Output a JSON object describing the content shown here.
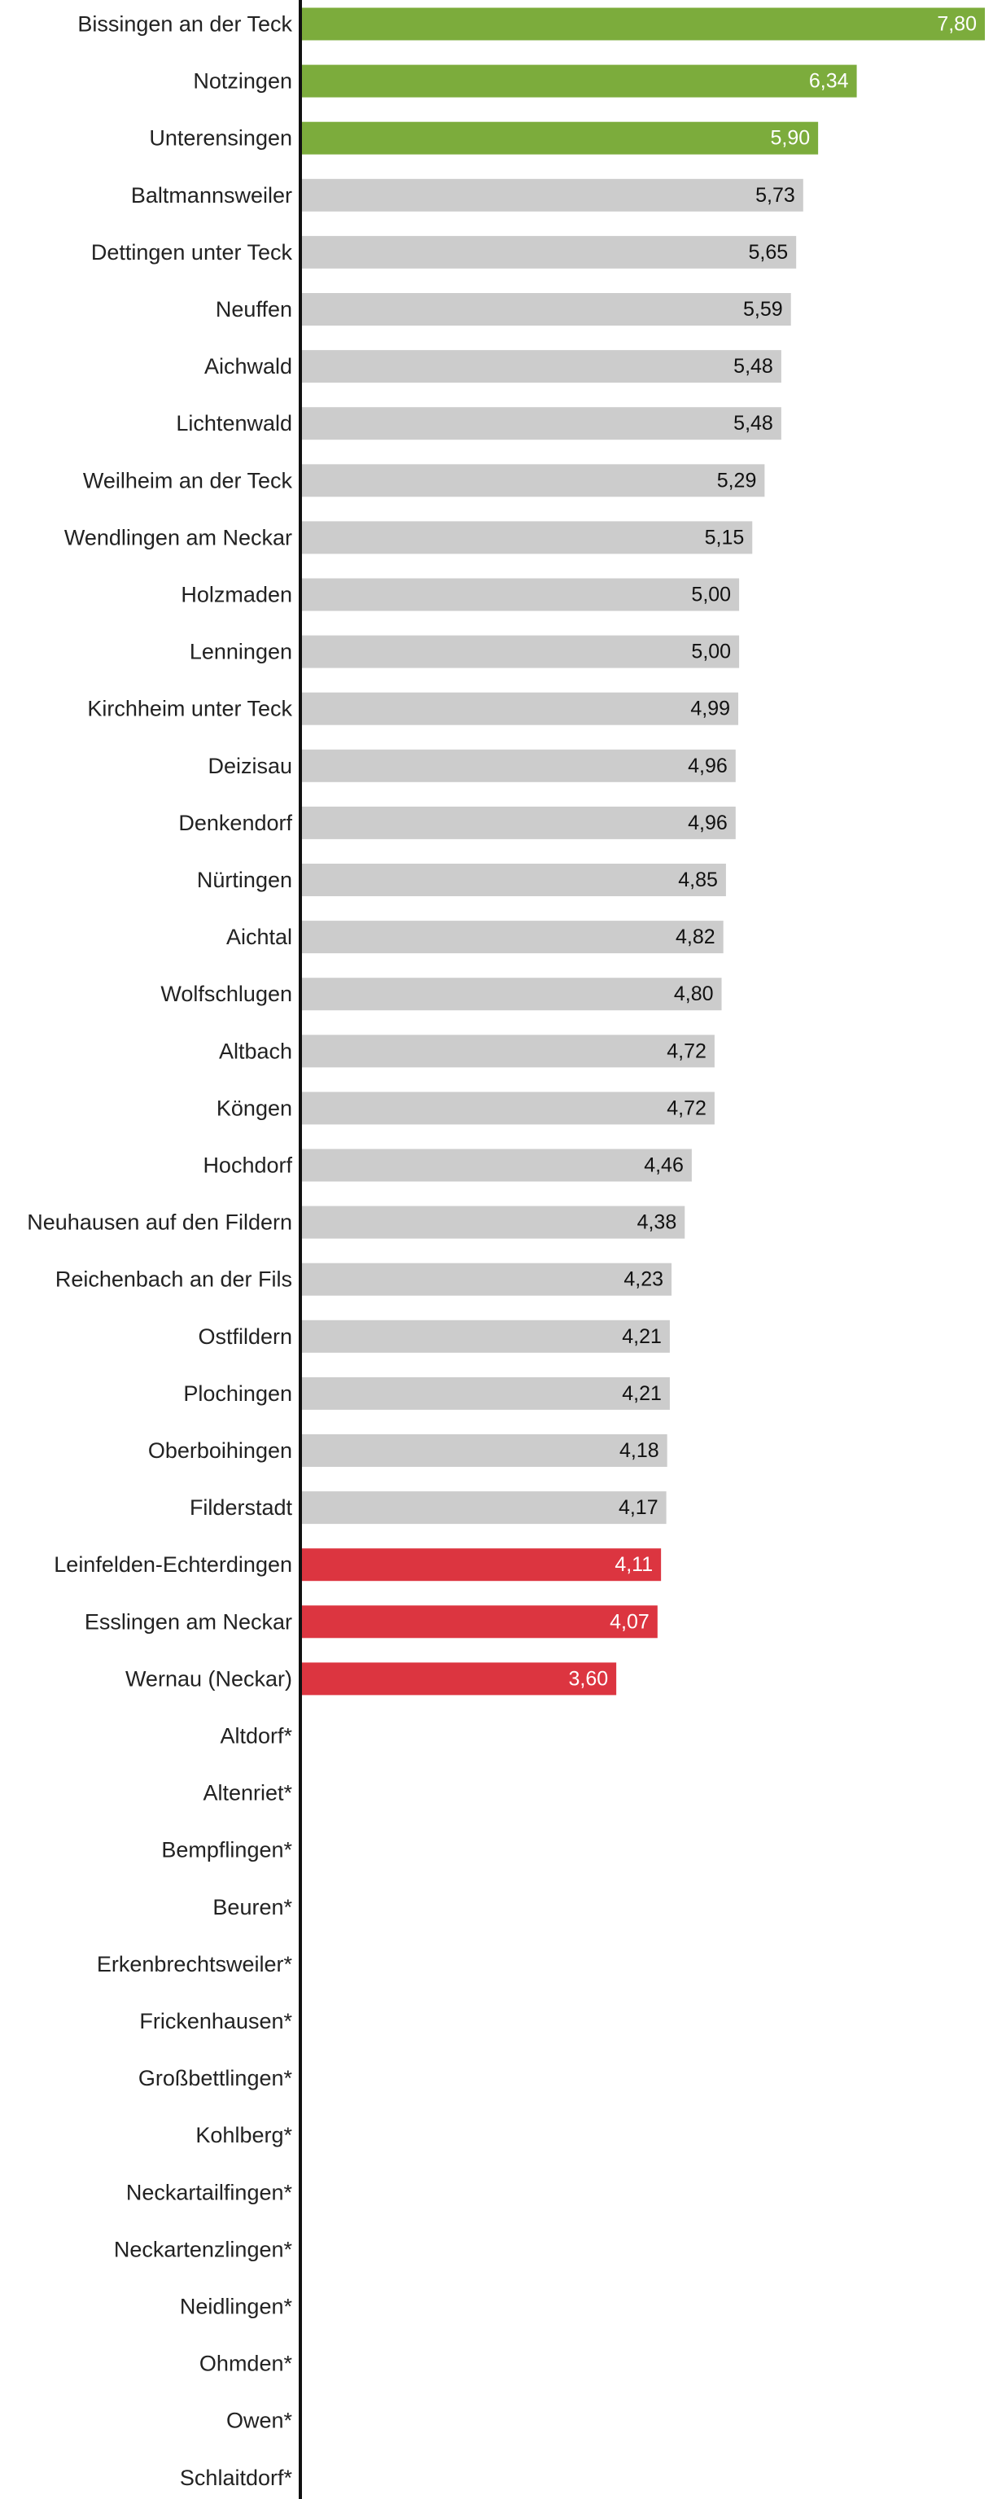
{
  "chart_data": {
    "type": "bar",
    "orientation": "horizontal",
    "title": "",
    "xlabel": "",
    "ylabel": "",
    "xlim": [
      0,
      7.8
    ],
    "grid": false,
    "colors": {
      "high": "#7cac3c",
      "mid": "#cccccc",
      "low": "#dc3540",
      "axis": "#111111",
      "label_on_color": "#ffffff",
      "label_on_gray": "#111111"
    },
    "categories": [
      "Bissingen an der Teck",
      "Notzingen",
      "Unterensingen",
      "Baltmannsweiler",
      "Dettingen unter Teck",
      "Neuffen",
      "Aichwald",
      "Lichtenwald",
      "Weilheim an der Teck",
      "Wendlingen am Neckar",
      "Holzmaden",
      "Lenningen",
      "Kirchheim unter Teck",
      "Deizisau",
      "Denkendorf",
      "Nürtingen",
      "Aichtal",
      "Wolfschlugen",
      "Altbach",
      "Köngen",
      "Hochdorf",
      "Neuhausen auf den Fildern",
      "Reichenbach an der Fils",
      "Ostfildern",
      "Plochingen",
      "Oberboihingen",
      "Filderstadt",
      "Leinfelden-Echterdingen",
      "Esslingen am Neckar",
      "Wernau (Neckar)",
      "Altdorf*",
      "Altenriet*",
      "Bempflingen*",
      "Beuren*",
      "Erkenbrechtsweiler*",
      "Frickenhausen*",
      "Großbettlingen*",
      "Kohlberg*",
      "Neckartailfingen*",
      "Neckartenzlingen*",
      "Neidlingen*",
      "Ohmden*",
      "Owen*",
      "Schlaitdorf*"
    ],
    "values": [
      7.8,
      6.34,
      5.9,
      5.73,
      5.65,
      5.59,
      5.48,
      5.48,
      5.29,
      5.15,
      5.0,
      5.0,
      4.99,
      4.96,
      4.96,
      4.85,
      4.82,
      4.8,
      4.72,
      4.72,
      4.46,
      4.38,
      4.23,
      4.21,
      4.21,
      4.18,
      4.17,
      4.11,
      4.07,
      3.6,
      null,
      null,
      null,
      null,
      null,
      null,
      null,
      null,
      null,
      null,
      null,
      null,
      null,
      null
    ],
    "value_labels": [
      "7,80",
      "6,34",
      "5,90",
      "5,73",
      "5,65",
      "5,59",
      "5,48",
      "5,48",
      "5,29",
      "5,15",
      "5,00",
      "5,00",
      "4,99",
      "4,96",
      "4,96",
      "4,85",
      "4,82",
      "4,80",
      "4,72",
      "4,72",
      "4,46",
      "4,38",
      "4,23",
      "4,21",
      "4,21",
      "4,18",
      "4,17",
      "4,11",
      "4,07",
      "3,60",
      "",
      "",
      "",
      "",
      "",
      "",
      "",
      "",
      "",
      "",
      "",
      "",
      "",
      ""
    ],
    "groups": [
      "high",
      "high",
      "high",
      "mid",
      "mid",
      "mid",
      "mid",
      "mid",
      "mid",
      "mid",
      "mid",
      "mid",
      "mid",
      "mid",
      "mid",
      "mid",
      "mid",
      "mid",
      "mid",
      "mid",
      "mid",
      "mid",
      "mid",
      "mid",
      "mid",
      "mid",
      "mid",
      "low",
      "low",
      "low",
      "none",
      "none",
      "none",
      "none",
      "none",
      "none",
      "none",
      "none",
      "none",
      "none",
      "none",
      "none",
      "none",
      "none"
    ]
  }
}
